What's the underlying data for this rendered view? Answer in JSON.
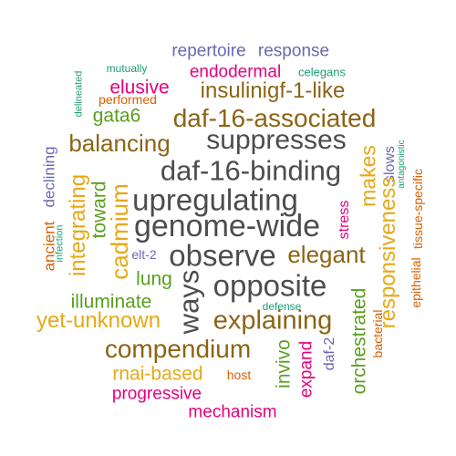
{
  "colors": {
    "gray": "#4d4d4d",
    "brown": "#8c6414",
    "gold": "#e6a817",
    "green": "#5a9e1e",
    "teal": "#1b9e77",
    "purple": "#6b68b0",
    "magenta": "#e6007e",
    "orange": "#d95f02"
  },
  "words": [
    {
      "text": "repertoire",
      "color": "purple"
    },
    {
      "text": "response",
      "color": "purple"
    },
    {
      "text": "mutually",
      "color": "teal"
    },
    {
      "text": "celegans",
      "color": "teal"
    },
    {
      "text": "endodermal",
      "color": "magenta"
    },
    {
      "text": "delineated",
      "color": "teal"
    },
    {
      "text": "elusive",
      "color": "magenta"
    },
    {
      "text": "insulinigf-1-like",
      "color": "brown"
    },
    {
      "text": "performed",
      "color": "orange"
    },
    {
      "text": "gata6",
      "color": "green"
    },
    {
      "text": "daf-16-associated",
      "color": "brown"
    },
    {
      "text": "balancing",
      "color": "brown"
    },
    {
      "text": "suppresses",
      "color": "gray"
    },
    {
      "text": "daf-16-binding",
      "color": "gray"
    },
    {
      "text": "makes",
      "color": "gold"
    },
    {
      "text": "slows",
      "color": "purple"
    },
    {
      "text": "antagonistic",
      "color": "teal"
    },
    {
      "text": "declining",
      "color": "purple"
    },
    {
      "text": "integrating",
      "color": "gold"
    },
    {
      "text": "toward",
      "color": "green"
    },
    {
      "text": "upregulating",
      "color": "gray"
    },
    {
      "text": "stress",
      "color": "magenta"
    },
    {
      "text": "responsiveness",
      "color": "gold"
    },
    {
      "text": "tissue-specific",
      "color": "orange"
    },
    {
      "text": "ancient",
      "color": "orange"
    },
    {
      "text": "infection",
      "color": "teal"
    },
    {
      "text": "cadmium",
      "color": "gold"
    },
    {
      "text": "genome-wide",
      "color": "gray"
    },
    {
      "text": "elt-2",
      "color": "purple"
    },
    {
      "text": "observe",
      "color": "gray"
    },
    {
      "text": "elegant",
      "color": "brown"
    },
    {
      "text": "epithelial",
      "color": "orange"
    },
    {
      "text": "lung",
      "color": "green"
    },
    {
      "text": "ways",
      "color": "gray"
    },
    {
      "text": "opposite",
      "color": "gray"
    },
    {
      "text": "illuminate",
      "color": "green"
    },
    {
      "text": "defense",
      "color": "teal"
    },
    {
      "text": "orchestrated",
      "color": "green"
    },
    {
      "text": "bacterial",
      "color": "orange"
    },
    {
      "text": "yet-unknown",
      "color": "gold"
    },
    {
      "text": "explaining",
      "color": "brown"
    },
    {
      "text": "invivo",
      "color": "green"
    },
    {
      "text": "expand",
      "color": "magenta"
    },
    {
      "text": "daf-2",
      "color": "purple"
    },
    {
      "text": "compendium",
      "color": "brown"
    },
    {
      "text": "rnai-based",
      "color": "gold"
    },
    {
      "text": "host",
      "color": "orange"
    },
    {
      "text": "progressive",
      "color": "magenta"
    },
    {
      "text": "mechanism",
      "color": "magenta"
    }
  ]
}
